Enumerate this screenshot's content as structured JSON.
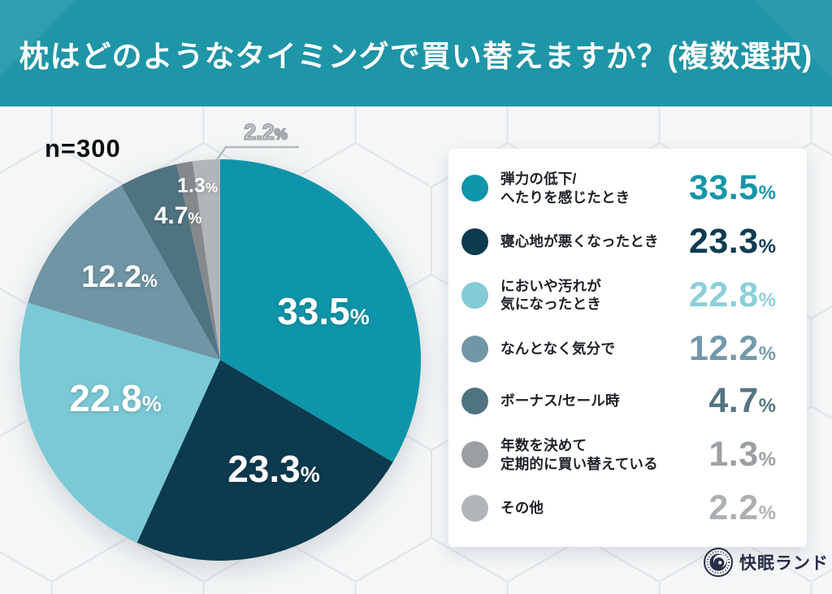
{
  "header": {
    "title": "枕はどのようなタイミングで買い替えますか？(複数選択)",
    "bg_color": "#1e96a8"
  },
  "sample_size_label": "n=300",
  "chart_data": {
    "type": "pie",
    "title": "枕はどのようなタイミングで買い替えますか？(複数選択)",
    "sample_size": "n=300",
    "start_angle_deg": 0,
    "direction": "clockwise",
    "legend_position": "right",
    "segments": [
      {
        "label": "弾力の低下/\nへたりを感じたとき",
        "value": "33.5",
        "unit": "%",
        "color": "#0f95aa",
        "legend_color": "#0f95aa",
        "value_color": "#1795a9"
      },
      {
        "label": "寝心地が悪くなったとき",
        "value": "23.3",
        "unit": "%",
        "color": "#0c3a4e",
        "legend_color": "#0c3a4e",
        "value_color": "#0e3c50"
      },
      {
        "label": "においや汚れが\n気になったとき",
        "value": "22.8",
        "unit": "%",
        "color": "#7cc9d6",
        "legend_color": "#82cbd7",
        "value_color": "#8ccfda"
      },
      {
        "label": "なんとなく気分で",
        "value": "12.2",
        "unit": "%",
        "color": "#7095a4",
        "legend_color": "#7197a7",
        "value_color": "#7399a9"
      },
      {
        "label": "ボーナス/セール時",
        "value": "4.7",
        "unit": "%",
        "color": "#4f7381",
        "legend_color": "#4f7381",
        "value_color": "#547581"
      },
      {
        "label": "年数を決めて\n定期的に買い替えている",
        "value": "1.3",
        "unit": "%",
        "color": "#85898c",
        "legend_color": "#9b9fa2",
        "value_color": "#9b9fa2"
      },
      {
        "label": "その他",
        "value": "2.2",
        "unit": "%",
        "color": "#b3b6b8",
        "legend_color": "#b2b5b7",
        "value_color": "#adb0b2"
      }
    ]
  },
  "footer": {
    "brand": "快眠ランド"
  }
}
